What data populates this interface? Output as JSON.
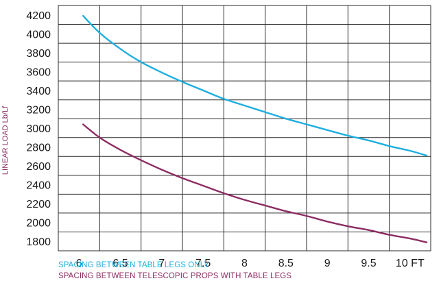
{
  "chart_data": {
    "type": "line",
    "title": "",
    "xlabel": "",
    "ylabel": "LINEAR LOAD Lb/Lf",
    "x_ticks": [
      "6",
      "6.5",
      "7",
      "7.5",
      "8",
      "8.5",
      "9",
      "9.5",
      "10 FT"
    ],
    "x_tick_values": [
      6,
      6.5,
      7,
      7.5,
      8,
      8.5,
      9,
      9.5,
      10
    ],
    "y_ticks": [
      "1800",
      "2000",
      "2200",
      "2400",
      "2600",
      "2800",
      "3000",
      "3200",
      "3400",
      "3600",
      "3800",
      "4000",
      "4200"
    ],
    "y_tick_values": [
      1800,
      2000,
      2200,
      2400,
      2600,
      2800,
      3000,
      3200,
      3400,
      3600,
      3800,
      4000,
      4200
    ],
    "xlim": [
      5.75,
      10.25
    ],
    "ylim": [
      1700,
      4300
    ],
    "grid": true,
    "legend_position": "bottom-left",
    "series": [
      {
        "name": "SPACING BETWEEN TABLE LEGS ONLY",
        "color": "#1eaee0",
        "x": [
          6.05,
          6.25,
          6.5,
          6.75,
          7.0,
          7.25,
          7.5,
          7.75,
          8.0,
          8.25,
          8.5,
          8.75,
          9.0,
          9.25,
          9.5,
          9.75,
          10.0,
          10.2
        ],
        "y": [
          4190,
          4010,
          3840,
          3700,
          3590,
          3490,
          3400,
          3310,
          3240,
          3170,
          3100,
          3040,
          2980,
          2920,
          2870,
          2810,
          2760,
          2710
        ]
      },
      {
        "name": "SPACING BETWEEN TELESCOPIC PROPS WITH TABLE LEGS",
        "color": "#8c2d62",
        "x": [
          6.05,
          6.25,
          6.5,
          6.75,
          7.0,
          7.25,
          7.5,
          7.75,
          8.0,
          8.25,
          8.5,
          8.75,
          9.0,
          9.25,
          9.5,
          9.75,
          10.0,
          10.2
        ],
        "y": [
          3040,
          2900,
          2770,
          2660,
          2560,
          2470,
          2390,
          2310,
          2240,
          2180,
          2120,
          2070,
          2010,
          1960,
          1920,
          1870,
          1830,
          1790
        ]
      }
    ]
  }
}
